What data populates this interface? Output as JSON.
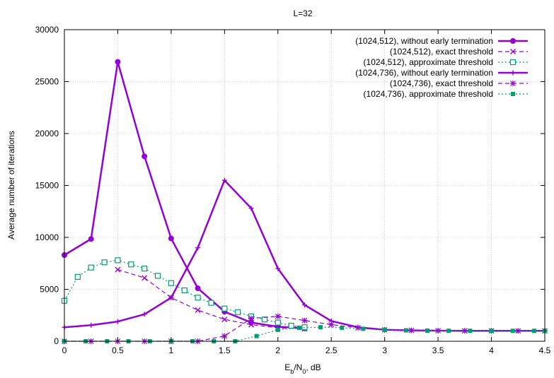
{
  "chart_data": {
    "type": "line",
    "title": "L=32",
    "xlabel_main": "E",
    "xlabel_sub1": "b",
    "xlabel_mid": "/N",
    "xlabel_sub2": "0",
    "xlabel_tail": ", dB",
    "ylabel": "Average number of iterations",
    "xlim": [
      0,
      4.5
    ],
    "ylim": [
      0,
      30000
    ],
    "xticks": [
      0,
      0.5,
      1,
      1.5,
      2,
      2.5,
      3,
      3.5,
      4,
      4.5
    ],
    "xtick_labels": [
      "0",
      "0.5",
      "1",
      "1.5",
      "2",
      "2.5",
      "3",
      "3.5",
      "4",
      "4.5"
    ],
    "yticks": [
      0,
      5000,
      10000,
      15000,
      20000,
      25000,
      30000
    ],
    "ytick_labels": [
      "0",
      "5000",
      "10000",
      "15000",
      "20000",
      "25000",
      "30000"
    ],
    "grid": true,
    "legend_position": "top-right",
    "series": [
      {
        "name": "(1024,512), without early termination",
        "color": "#9400d3",
        "style": "solid",
        "marker": "circle",
        "x": [
          0,
          0.25,
          0.5,
          0.75,
          1.0,
          1.25,
          1.5,
          1.75,
          2.0,
          2.25
        ],
        "y": [
          8300,
          9850,
          26900,
          17800,
          9900,
          5100,
          2850,
          1800,
          1400,
          1250
        ]
      },
      {
        "name": "(1024,512), exact threshold",
        "color": "#9400d3",
        "style": "dashed",
        "marker": "x",
        "x": [
          0.5,
          0.75,
          1.0,
          1.25,
          1.5,
          1.75,
          2.0,
          2.25
        ],
        "y": [
          6900,
          6100,
          4200,
          3000,
          2100,
          1600,
          1300,
          1200
        ]
      },
      {
        "name": "(1024,512), approximate threshold",
        "color": "#009e73",
        "style": "dotted",
        "marker": "square-open",
        "x": [
          0,
          0.125,
          0.25,
          0.375,
          0.5,
          0.625,
          0.75,
          0.875,
          1.0,
          1.125,
          1.25,
          1.375,
          1.5,
          1.625,
          1.75,
          1.875,
          2.0,
          2.125,
          2.25
        ],
        "y": [
          3900,
          6200,
          7100,
          7600,
          7800,
          7400,
          7000,
          6300,
          5600,
          4900,
          4200,
          3700,
          3150,
          2800,
          2400,
          2100,
          1800,
          1500,
          1350
        ]
      },
      {
        "name": "(1024,736), without early termination",
        "color": "#9400d3",
        "style": "solid",
        "marker": "plus",
        "x": [
          0,
          0.25,
          0.5,
          0.75,
          1.0,
          1.25,
          1.5,
          1.75,
          2.0,
          2.25,
          2.5,
          2.75,
          3.0,
          3.25,
          3.5,
          3.75,
          4.0,
          4.25,
          4.5
        ],
        "y": [
          1350,
          1550,
          1900,
          2600,
          4200,
          9000,
          15500,
          12800,
          7000,
          3500,
          1950,
          1350,
          1100,
          1050,
          1020,
          1010,
          1005,
          1002,
          1000
        ]
      },
      {
        "name": "(1024,736), exact threshold",
        "color": "#9400d3",
        "style": "dashed",
        "marker": "star",
        "x": [
          0,
          0.25,
          0.5,
          0.75,
          1.0,
          1.25,
          1.5,
          1.75,
          2.0,
          2.25,
          2.5,
          2.75,
          3.0,
          3.25,
          3.5,
          3.75,
          4.0,
          4.25,
          4.5
        ],
        "y": [
          0,
          0,
          0,
          0,
          0,
          0,
          500,
          2200,
          2400,
          2000,
          1600,
          1300,
          1100,
          1050,
          1020,
          1010,
          1005,
          1002,
          1000
        ]
      },
      {
        "name": "(1024,736), approximate threshold",
        "color": "#009e73",
        "style": "dotted",
        "marker": "square-filled",
        "x": [
          0,
          0.2,
          0.4,
          0.6,
          0.8,
          1.0,
          1.2,
          1.4,
          1.6,
          1.8,
          2.0,
          2.2,
          2.4,
          2.6,
          2.8,
          3.0,
          3.2,
          3.4,
          3.6,
          3.8,
          4.0,
          4.2,
          4.4,
          4.5
        ],
        "y": [
          0,
          0,
          0,
          0,
          0,
          0,
          0,
          0,
          0,
          500,
          1100,
          1300,
          1350,
          1300,
          1200,
          1100,
          1050,
          1020,
          1010,
          1005,
          1002,
          1001,
          1000,
          1000
        ]
      }
    ]
  }
}
